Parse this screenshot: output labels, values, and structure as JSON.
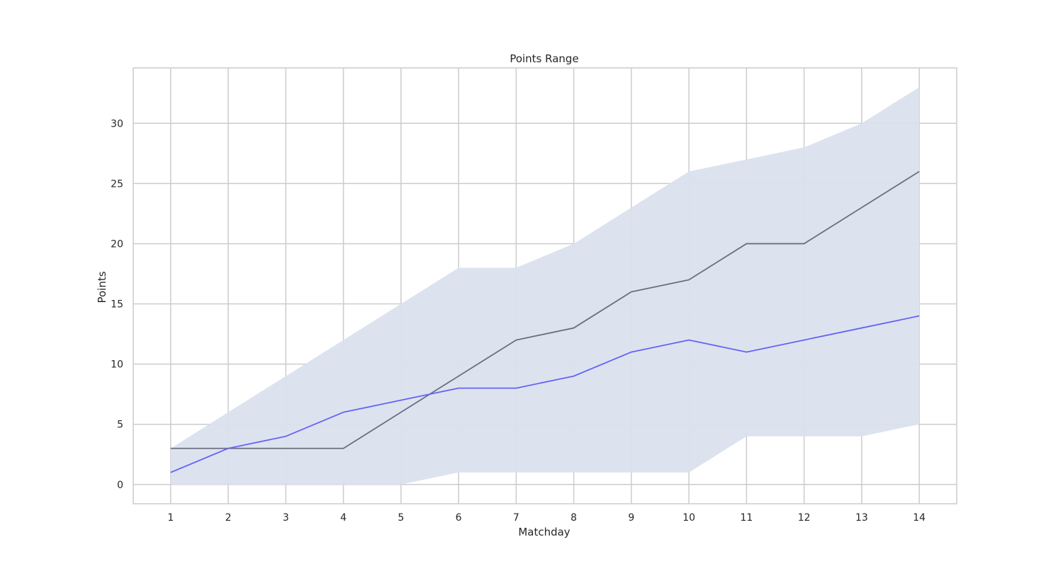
{
  "chart_data": {
    "type": "line",
    "title": "Points Range",
    "xlabel": "Matchday",
    "ylabel": "Points",
    "x": [
      1,
      2,
      3,
      4,
      5,
      6,
      7,
      8,
      9,
      10,
      11,
      12,
      13,
      14
    ],
    "xlim": [
      0.35,
      14.65
    ],
    "ylim": [
      -1.6,
      34.6
    ],
    "yticks": [
      0,
      5,
      10,
      15,
      20,
      25,
      30
    ],
    "grid": true,
    "range_band": {
      "color": "#dae1ee",
      "lower": [
        0,
        0,
        0,
        0,
        0,
        1,
        1,
        1,
        1,
        1,
        4,
        4,
        4,
        5
      ],
      "upper": [
        3,
        6,
        9,
        12,
        15,
        18,
        18,
        20,
        23,
        26,
        27,
        28,
        30,
        33
      ]
    },
    "series": [
      {
        "color": "#6b6f80",
        "values": [
          3,
          3,
          3,
          3,
          6,
          9,
          12,
          13,
          16,
          17,
          20,
          20,
          23,
          26
        ]
      },
      {
        "color": "#6464f5",
        "values": [
          1,
          3,
          4,
          6,
          7,
          8,
          8,
          9,
          11,
          12,
          11,
          12,
          13,
          14
        ]
      }
    ]
  }
}
